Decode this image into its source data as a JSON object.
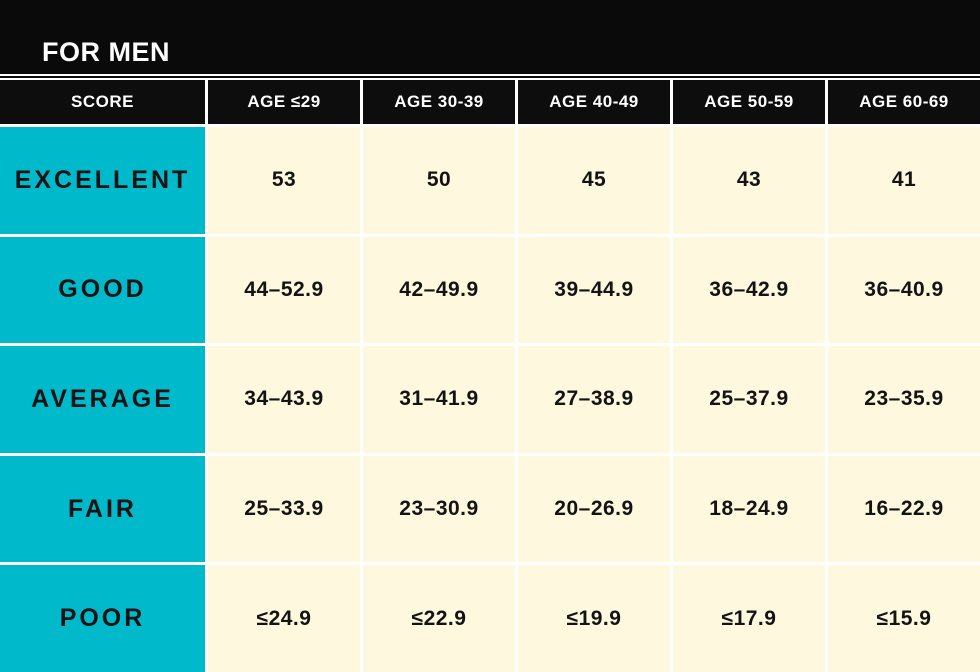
{
  "colors": {
    "cyan": "#00bacb",
    "cream": "#fdf8de",
    "band_black": "#0a0a0a",
    "cell_black": "#0d0d0d",
    "text_dark": "#131313",
    "gap_white": "#ffffff"
  },
  "chart_data": {
    "type": "table",
    "title": "FOR MEN",
    "columns": [
      "SCORE",
      "AGE ≤29",
      "AGE 30-39",
      "AGE 40-49",
      "AGE 50-59",
      "AGE 60-69"
    ],
    "rows": [
      {
        "label": "EXCELLENT",
        "values": [
          "53",
          "50",
          "45",
          "43",
          "41"
        ]
      },
      {
        "label": "GOOD",
        "values": [
          "44–52.9",
          "42–49.9",
          "39–44.9",
          "36–42.9",
          "36–40.9"
        ]
      },
      {
        "label": "AVERAGE",
        "values": [
          "34–43.9",
          "31–41.9",
          "27–38.9",
          "25–37.9",
          "23–35.9"
        ]
      },
      {
        "label": "FAIR",
        "values": [
          "25–33.9",
          "23–30.9",
          "20–26.9",
          "18–24.9",
          "16–22.9"
        ]
      },
      {
        "label": "POOR",
        "values": [
          "≤24.9",
          "≤22.9",
          "≤19.9",
          "≤17.9",
          "≤15.9"
        ]
      }
    ]
  }
}
